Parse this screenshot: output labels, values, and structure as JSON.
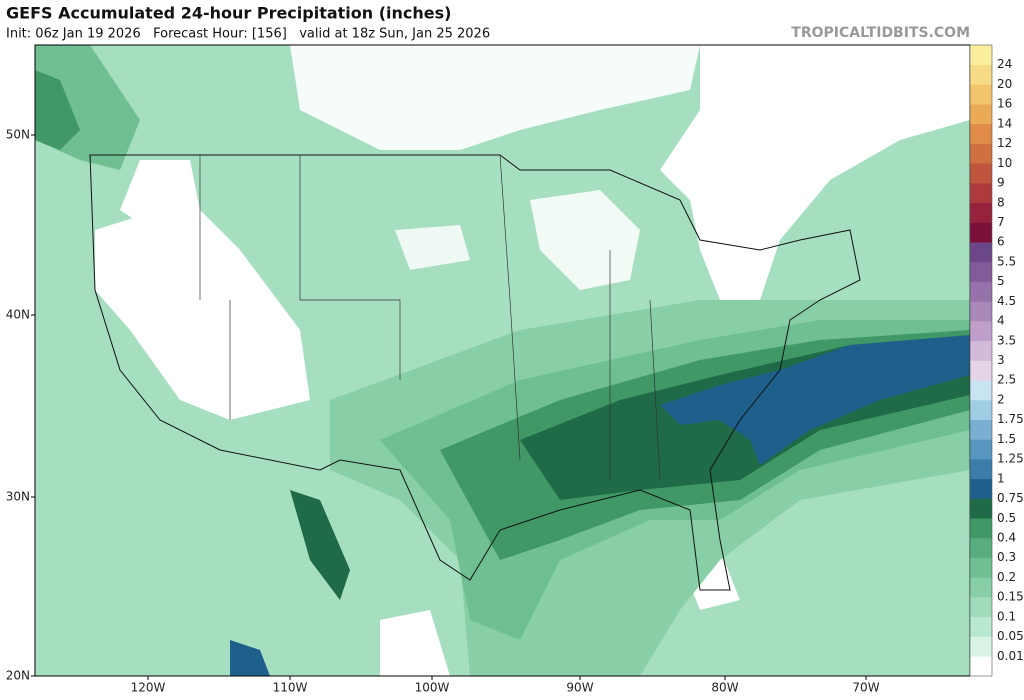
{
  "header": {
    "title": "GEFS Accumulated 24-hour Precipitation (inches)",
    "subtitle": "Init: 06z Jan 19 2026   Forecast Hour: [156]   valid at 18z Sun, Jan 25 2026",
    "watermark": "TROPICALTIDBITS.COM"
  },
  "map": {
    "lat_labels": [
      "50N",
      "40N",
      "30N",
      "20N"
    ],
    "lon_labels": [
      "120W",
      "110W",
      "100W",
      "90W",
      "80W",
      "70W"
    ]
  },
  "colorbar": {
    "levels": [
      0.01,
      0.05,
      0.1,
      0.15,
      0.2,
      0.3,
      0.4,
      0.5,
      0.75,
      1,
      1.25,
      1.5,
      1.75,
      2,
      2.5,
      3,
      3.5,
      4,
      4.5,
      5,
      5.5,
      6,
      7,
      8,
      9,
      10,
      12,
      14,
      16,
      20,
      24
    ],
    "colors": [
      "#ffffff",
      "#d9f3e5",
      "#b8e8cf",
      "#a0dcbc",
      "#88cfa7",
      "#6fbf92",
      "#58ad7e",
      "#3f9866",
      "#1f6b47",
      "#1e5f8b",
      "#3b7ca8",
      "#5896bf",
      "#79afd1",
      "#a0cce4",
      "#c8e4f3",
      "#e4d4e8",
      "#d3badb",
      "#bf9fca",
      "#aa88ba",
      "#9572aa",
      "#815b9a",
      "#6b4789",
      "#7a0f3a",
      "#96223d",
      "#ad3a3c",
      "#c0553e",
      "#d07040",
      "#e08c48",
      "#ebaa56",
      "#f2c46c",
      "#f6da86",
      "#fbef9e"
    ]
  }
}
